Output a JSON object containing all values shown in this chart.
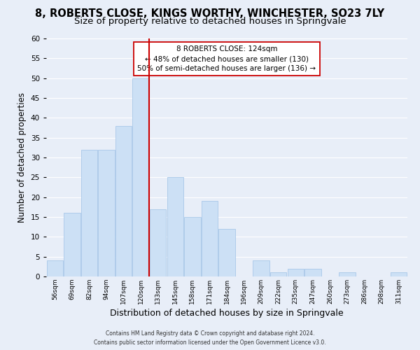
{
  "title": "8, ROBERTS CLOSE, KINGS WORTHY, WINCHESTER, SO23 7LY",
  "subtitle": "Size of property relative to detached houses in Springvale",
  "xlabel": "Distribution of detached houses by size in Springvale",
  "ylabel": "Number of detached properties",
  "footer_line1": "Contains HM Land Registry data © Crown copyright and database right 2024.",
  "footer_line2": "Contains public sector information licensed under the Open Government Licence v3.0.",
  "bar_labels": [
    "56sqm",
    "69sqm",
    "82sqm",
    "94sqm",
    "107sqm",
    "120sqm",
    "133sqm",
    "145sqm",
    "158sqm",
    "171sqm",
    "184sqm",
    "196sqm",
    "209sqm",
    "222sqm",
    "235sqm",
    "247sqm",
    "260sqm",
    "273sqm",
    "286sqm",
    "298sqm",
    "311sqm"
  ],
  "bar_values": [
    4,
    16,
    32,
    32,
    38,
    50,
    17,
    25,
    15,
    19,
    12,
    0,
    4,
    1,
    2,
    2,
    0,
    1,
    0,
    0,
    1
  ],
  "bar_color": "#cce0f5",
  "bar_edge_color": "#a8c8e8",
  "vline_x": 5.5,
  "vline_color": "#cc0000",
  "annotation_title": "8 ROBERTS CLOSE: 124sqm",
  "annotation_line1": "← 48% of detached houses are smaller (130)",
  "annotation_line2": "50% of semi-detached houses are larger (136) →",
  "annotation_box_color": "#ffffff",
  "annotation_box_edge": "#cc0000",
  "ylim": [
    0,
    60
  ],
  "yticks": [
    0,
    5,
    10,
    15,
    20,
    25,
    30,
    35,
    40,
    45,
    50,
    55,
    60
  ],
  "background_color": "#e8eef8",
  "grid_color": "#ffffff",
  "title_fontsize": 10.5,
  "subtitle_fontsize": 9.5
}
